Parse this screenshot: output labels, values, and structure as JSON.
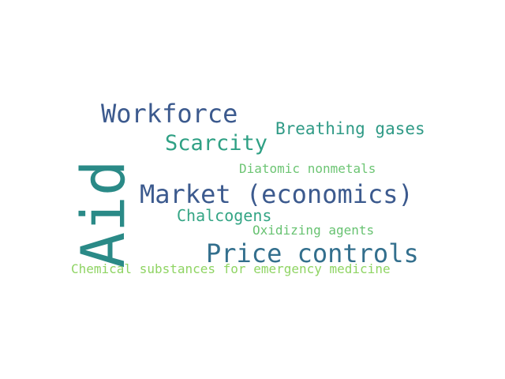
{
  "words": [
    {
      "key": "aid",
      "text": "Aid",
      "color": "#2a8a87",
      "orientation": "vertical"
    },
    {
      "key": "workforce",
      "text": "Workforce",
      "color": "#3c5a8e",
      "orientation": "horizontal"
    },
    {
      "key": "breathing_gases",
      "text": "Breathing gases",
      "color": "#2f9a86",
      "orientation": "horizontal"
    },
    {
      "key": "scarcity",
      "text": "Scarcity",
      "color": "#2fa084",
      "orientation": "horizontal"
    },
    {
      "key": "diatomic_nonmetals",
      "text": "Diatomic nonmetals",
      "color": "#6dc574",
      "orientation": "horizontal"
    },
    {
      "key": "market_economics",
      "text": "Market (economics)",
      "color": "#3c5a8e",
      "orientation": "horizontal"
    },
    {
      "key": "chalcogens",
      "text": "Chalcogens",
      "color": "#34a585",
      "orientation": "horizontal"
    },
    {
      "key": "oxidizing_agents",
      "text": "Oxidizing agents",
      "color": "#67c271",
      "orientation": "horizontal"
    },
    {
      "key": "price_controls",
      "text": "Price controls",
      "color": "#336f8d",
      "orientation": "horizontal"
    },
    {
      "key": "chemical_substances",
      "text": "Chemical substances for emergency medicine",
      "color": "#8fd463",
      "orientation": "horizontal"
    }
  ]
}
